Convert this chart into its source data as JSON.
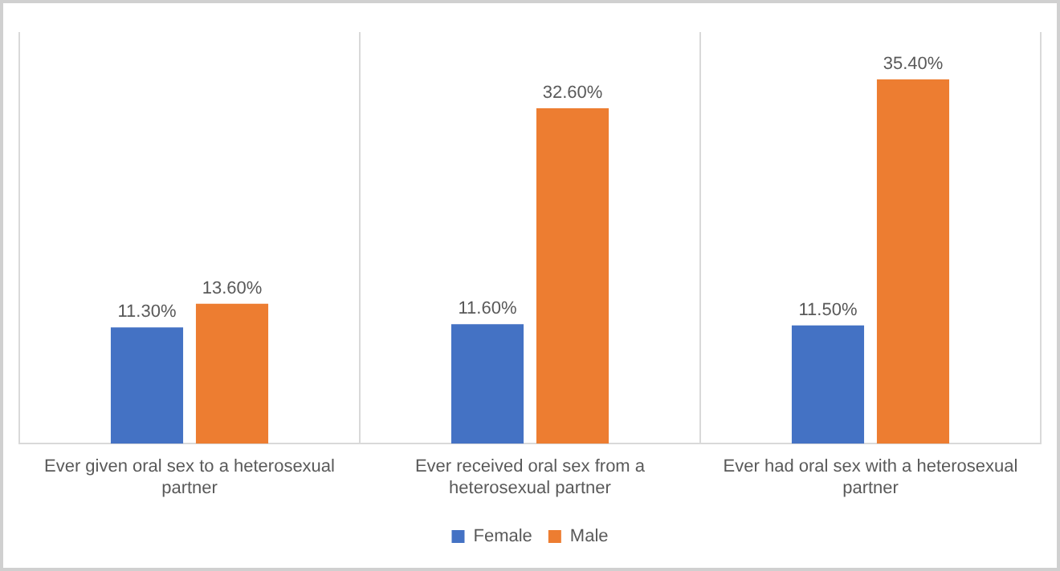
{
  "chart_data": {
    "type": "bar",
    "categories": [
      "Ever given oral sex to a heterosexual partner",
      "Ever received oral sex from a heterosexual partner",
      "Ever had oral sex with a heterosexual partner"
    ],
    "series": [
      {
        "name": "Female",
        "color": "#4472c4",
        "values": [
          11.3,
          11.6,
          11.5
        ],
        "value_labels": [
          "11.30%",
          "11.60%",
          "11.50%"
        ]
      },
      {
        "name": "Male",
        "color": "#ed7d31",
        "values": [
          13.6,
          32.6,
          35.4
        ],
        "value_labels": [
          "13.60%",
          "32.60%",
          "35.40%"
        ]
      }
    ],
    "grid": "x",
    "legend": "bottom",
    "tick_labels": "x"
  }
}
